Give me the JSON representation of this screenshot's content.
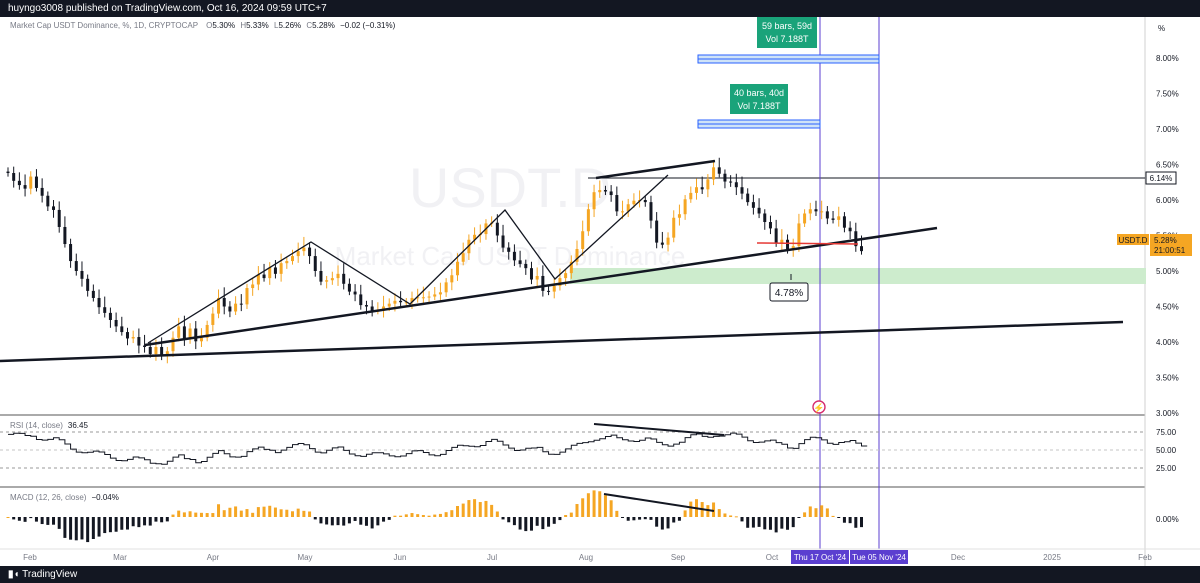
{
  "header": {
    "publisher": "huyngo3008 published on TradingView.com, Oct 16, 2024 09:59 UTC+7"
  },
  "footer": {
    "brand": "TradingView"
  },
  "legend": {
    "title": "Market Cap USDT Dominance, %, 1D, CRYPTOCAP",
    "o_label": "O",
    "o": "5.30%",
    "h_label": "H",
    "h": "5.33%",
    "l_label": "L",
    "l": "5.26%",
    "c_label": "C",
    "c": "5.28%",
    "change": "−0.02 (−0.31%)"
  },
  "watermark": {
    "symbol": "USDT.D",
    "name": "Market Cap USDT Dominance"
  },
  "price_scale": {
    "unit": "%",
    "ticks": [
      "8.00%",
      "7.50%",
      "7.00%",
      "6.50%",
      "6.00%",
      "5.50%",
      "5.00%",
      "4.50%",
      "4.00%",
      "3.50%",
      "3.00%"
    ],
    "current_symbol": "USDT.D",
    "current_value": "5.28%",
    "countdown": "21:00:51",
    "level_label": "6.14%"
  },
  "annotations": {
    "range1_bars": "59 bars, 59d",
    "range1_vol": "Vol 7.188T",
    "range2_bars": "40 bars, 40d",
    "range2_vol": "Vol 7.188T",
    "target": "4.78%"
  },
  "rsi": {
    "label": "RSI (14, close)",
    "value": "36.45",
    "ticks": [
      "75.00",
      "50.00",
      "25.00"
    ]
  },
  "macd": {
    "label": "MACD (12, 26, close)",
    "value": "−0.04%",
    "ticks": [
      "0.00%"
    ]
  },
  "time_axis": {
    "ticks": [
      "Feb",
      "Mar",
      "Apr",
      "May",
      "Jun",
      "Jul",
      "Aug",
      "Sep",
      "Oct",
      "Dec",
      "2025",
      "Feb"
    ],
    "cursor1": "Thu 17 Oct '24",
    "cursor2": "Tue 05 Nov '24"
  },
  "colors": {
    "up": "#f5a623",
    "down": "#131722",
    "accent": "#5b3fd0",
    "box": "#1aa37a",
    "zone": "#cdeccd",
    "level_red": "#e53935"
  },
  "chart_data": {
    "type": "candlestick",
    "xlabel": "",
    "ylabel": "",
    "ylim": [
      2.9,
      8.4
    ],
    "x_start": "2024-01-22",
    "close": [
      6.38,
      6.27,
      6.21,
      6.16,
      6.33,
      6.17,
      6.06,
      5.91,
      5.86,
      5.62,
      5.38,
      5.14,
      5.0,
      4.89,
      4.72,
      4.62,
      4.49,
      4.41,
      4.31,
      4.22,
      4.14,
      4.05,
      4.07,
      3.95,
      3.93,
      3.83,
      3.93,
      3.81,
      3.87,
      4.06,
      4.22,
      4.04,
      4.19,
      4.01,
      4.06,
      4.24,
      4.4,
      4.62,
      4.5,
      4.43,
      4.54,
      4.53,
      4.76,
      4.81,
      4.95,
      4.9,
      5.05,
      4.96,
      5.11,
      5.14,
      5.21,
      5.28,
      5.33,
      5.21,
      5.0,
      4.85,
      4.87,
      4.9,
      4.96,
      4.82,
      4.71,
      4.67,
      4.52,
      4.5,
      4.44,
      4.44,
      4.5,
      4.54,
      4.58,
      4.56,
      4.56,
      4.62,
      4.63,
      4.63,
      4.64,
      4.67,
      4.7,
      4.84,
      4.94,
      5.13,
      5.25,
      5.44,
      5.51,
      5.52,
      5.67,
      5.68,
      5.5,
      5.33,
      5.27,
      5.15,
      5.1,
      5.04,
      4.88,
      4.93,
      4.72,
      4.71,
      4.79,
      4.9,
      4.97,
      5.13,
      5.31,
      5.56,
      5.87,
      6.11,
      6.14,
      6.12,
      6.07,
      5.84,
      5.84,
      5.94,
      5.99,
      6.0,
      5.97,
      5.71,
      5.4,
      5.37,
      5.47,
      5.75,
      5.8,
      6.01,
      6.1,
      6.18,
      6.15,
      6.29,
      6.46,
      6.37,
      6.26,
      6.25,
      6.18,
      6.09,
      5.97,
      5.89,
      5.81,
      5.69,
      5.6,
      5.39,
      5.44,
      5.31,
      5.35,
      5.67,
      5.81,
      5.87,
      5.84,
      5.84,
      5.74,
      5.72,
      5.77,
      5.61,
      5.56,
      5.35,
      5.28
    ]
  }
}
